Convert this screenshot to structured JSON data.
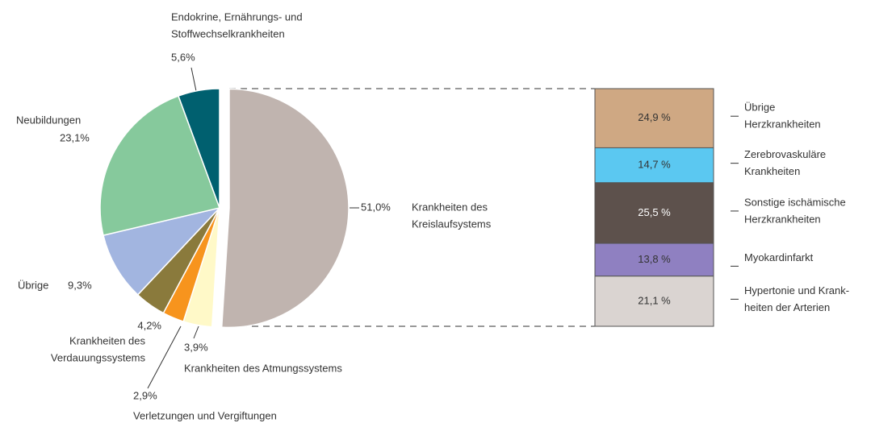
{
  "chart_data": [
    {
      "type": "pie",
      "categories": [
        [
          "Krankheiten des",
          "Kreislaufsystems"
        ],
        [
          "Krankheiten des Atmungssystems"
        ],
        [
          "Verletzungen und Vergiftungen"
        ],
        [
          "Krankheiten des",
          "Verdauungssystems"
        ],
        [
          "Übrige"
        ],
        [
          "Neubildungen"
        ],
        [
          "Endokrine, Ernährungs- und",
          "Stoffwechselkrankheiten"
        ]
      ],
      "values": [
        51.0,
        3.9,
        2.9,
        4.2,
        9.3,
        23.1,
        5.6
      ],
      "value_labels": [
        "51,0%",
        "3,9%",
        "2,9%",
        "4,2%",
        "9,3%",
        "23,1%",
        "5,6%"
      ],
      "colors": [
        "#c0b4af",
        "#fff9c8",
        "#f7941d",
        "#8a7a3c",
        "#a2b5e0",
        "#86c99c",
        "#00606f"
      ]
    },
    {
      "type": "bar",
      "categories": [
        [
          "Übrige",
          "Herzkrankheiten"
        ],
        [
          "Zerebrovaskuläre",
          "Krankheiten"
        ],
        [
          "Sonstige ischämische",
          "Herzkrankheiten"
        ],
        [
          "Myokardinfarkt"
        ],
        [
          "Hypertonie und Krank-",
          "heiten der Arterien"
        ]
      ],
      "values": [
        24.9,
        14.7,
        25.5,
        13.8,
        21.1
      ],
      "value_labels": [
        "24,9 %",
        "14,7 %",
        "25,5 %",
        "13,8 %",
        "21,1 %"
      ],
      "colors": [
        "#cfa883",
        "#5bc8f1",
        "#5d514c",
        "#8f80c1",
        "#dad4d1"
      ],
      "ylim": [
        0,
        100
      ]
    }
  ]
}
